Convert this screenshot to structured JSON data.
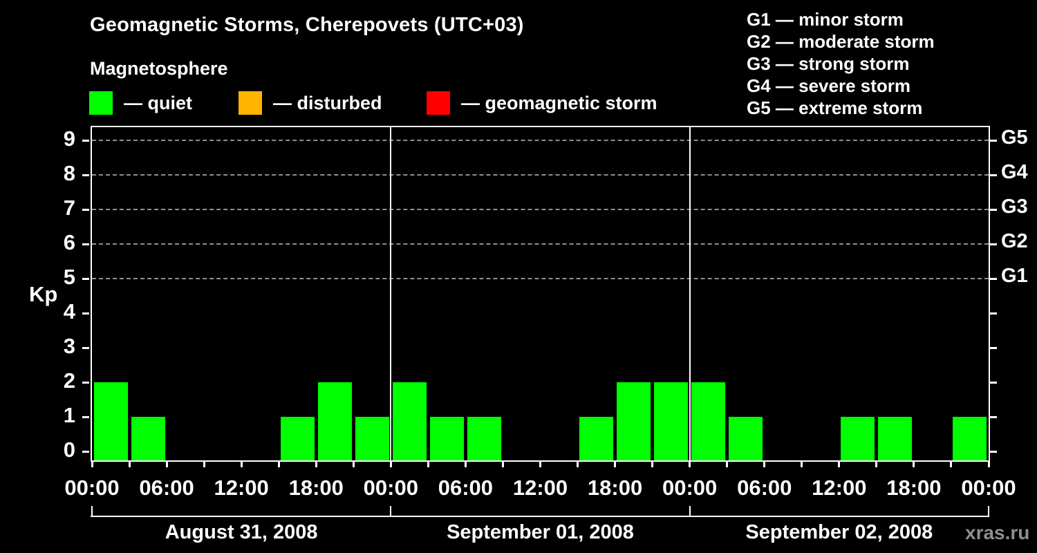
{
  "header": {
    "title": "Geomagnetic Storms, Cherepovets (UTC+03)",
    "subtitle": "Magnetosphere"
  },
  "legend": {
    "items": [
      {
        "name": "quiet",
        "label": "— quiet",
        "color": "#00ff00"
      },
      {
        "name": "disturbed",
        "label": "— disturbed",
        "color": "#ffb400"
      },
      {
        "name": "geomagnetic-storm",
        "label": "— geomagnetic storm",
        "color": "#ff0000"
      }
    ]
  },
  "storm_scale": {
    "lines": [
      "G1 — minor storm",
      "G2 — moderate storm",
      "G3 — strong storm",
      "G4 — severe storm",
      "G5 — extreme storm"
    ]
  },
  "watermark": "xras.ru",
  "chart_data": {
    "type": "bar",
    "title": "Geomagnetic Storms, Cherepovets (UTC+03)",
    "ylabel": "Kp",
    "ylim": [
      0,
      9
    ],
    "yticks": [
      0,
      1,
      2,
      3,
      4,
      5,
      6,
      7,
      8,
      9
    ],
    "gridlines_at_kp": [
      5,
      6,
      7,
      8,
      9
    ],
    "right_axis": [
      {
        "kp": 5,
        "label": "G1"
      },
      {
        "kp": 6,
        "label": "G2"
      },
      {
        "kp": 7,
        "label": "G3"
      },
      {
        "kp": 8,
        "label": "G4"
      },
      {
        "kp": 9,
        "label": "G5"
      }
    ],
    "bin_hours": 3,
    "x_tick_labels": [
      "00:00",
      "06:00",
      "12:00",
      "18:00",
      "00:00",
      "06:00",
      "12:00",
      "18:00",
      "00:00",
      "06:00",
      "12:00",
      "18:00",
      "00:00"
    ],
    "series": [
      {
        "date": "August 31, 2008",
        "kp": [
          2,
          1,
          0,
          0,
          0,
          1,
          2,
          1
        ]
      },
      {
        "date": "September 01, 2008",
        "kp": [
          2,
          1,
          1,
          0,
          0,
          1,
          2,
          2
        ]
      },
      {
        "date": "September 02, 2008",
        "kp": [
          2,
          1,
          0,
          0,
          1,
          1,
          0,
          1
        ]
      }
    ],
    "colors": {
      "quiet": "#00ff00",
      "disturbed": "#ffb400",
      "storm": "#ff0000",
      "grid": "#909090",
      "axis": "#ffffff"
    },
    "color_rule": {
      "quiet_max_kp": 3,
      "disturbed_kp": 4,
      "storm_min_kp": 5
    }
  }
}
